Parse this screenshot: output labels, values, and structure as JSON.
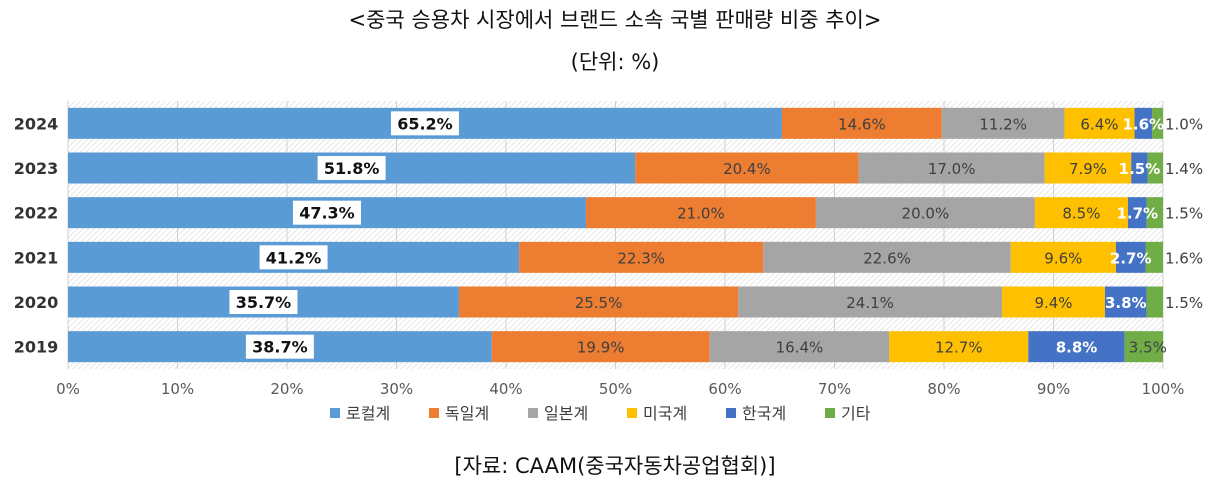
{
  "title": "<중국 승용차 시장에서 브랜드 소속 국별 판매량 비중 추이>",
  "unit": "(단위: %)",
  "source": "[자료: CAAM(중국자동차공업협회)]",
  "colors": {
    "로컬계": "#5b9bd5",
    "독일계": "#ed7d31",
    "일본계": "#a5a5a5",
    "미국계": "#ffc000",
    "한국계": "#4472c4",
    "기타": "#70ad47"
  },
  "chart_data": {
    "type": "bar",
    "orientation": "horizontal",
    "stacked": "percent",
    "categories": [
      "2024",
      "2023",
      "2022",
      "2021",
      "2020",
      "2019"
    ],
    "series": [
      {
        "name": "로컬계",
        "values": [
          65.2,
          51.8,
          47.3,
          41.2,
          35.7,
          38.7
        ],
        "labels": [
          "65.2%",
          "51.8%",
          "47.3%",
          "41.2%",
          "35.7%",
          "38.7%"
        ]
      },
      {
        "name": "독일계",
        "values": [
          14.6,
          20.4,
          21.0,
          22.3,
          25.5,
          19.9
        ],
        "labels": [
          "14.6%",
          "20.4%",
          "21.0%",
          "22.3%",
          "25.5%",
          "19.9%"
        ]
      },
      {
        "name": "일본계",
        "values": [
          11.2,
          17.0,
          20.0,
          22.6,
          24.1,
          16.4
        ],
        "labels": [
          "11.2%",
          "17.0%",
          "20.0%",
          "22.6%",
          "24.1%",
          "16.4%"
        ]
      },
      {
        "name": "미국계",
        "values": [
          6.4,
          7.9,
          8.5,
          9.6,
          9.4,
          12.7
        ],
        "labels": [
          "6.4%",
          "7.9%",
          "8.5%",
          "9.6%",
          "9.4%",
          "12.7%"
        ]
      },
      {
        "name": "한국계",
        "values": [
          1.6,
          1.5,
          1.7,
          2.7,
          3.8,
          8.8
        ],
        "labels": [
          "1.6%",
          "1.5%",
          "1.7%",
          "2.7%",
          "3.8%",
          "8.8%"
        ]
      },
      {
        "name": "기타",
        "values": [
          1.0,
          1.4,
          1.5,
          1.6,
          1.5,
          3.5
        ],
        "labels": [
          "1.0%",
          "1.4%",
          "1.5%",
          "1.6%",
          "1.5%",
          "3.5%"
        ]
      }
    ],
    "xlim": [
      0,
      100
    ],
    "xticks": [
      0,
      10,
      20,
      30,
      40,
      50,
      60,
      70,
      80,
      90,
      100
    ],
    "xtick_labels": [
      "0%",
      "10%",
      "20%",
      "30%",
      "40%",
      "50%",
      "60%",
      "70%",
      "80%",
      "90%",
      "100%"
    ],
    "legend": [
      "로컬계",
      "독일계",
      "일본계",
      "미국계",
      "한국계",
      "기타"
    ],
    "legend_position": "bottom",
    "grid": true
  }
}
